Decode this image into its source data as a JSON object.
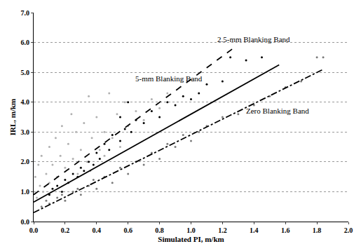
{
  "chart_data": {
    "type": "scatter",
    "x_label": "Simulated PI, m/km",
    "y_label": "IRL, m/km",
    "xlim": [
      0,
      2
    ],
    "ylim": [
      0,
      7
    ],
    "xticks": [
      {
        "value": 0,
        "label": "0.0"
      },
      0.2,
      0.4,
      0.6,
      0.8,
      {
        "value": 1,
        "label": "1.0"
      },
      1.2,
      1.4,
      1.6,
      1.8,
      {
        "value": 2,
        "label": "2.0"
      }
    ],
    "yticks": [
      {
        "value": 0,
        "label": "0.0"
      },
      {
        "value": 1,
        "label": "1.0"
      },
      {
        "value": 2,
        "label": "2.0"
      },
      {
        "value": 3,
        "label": "3.0"
      },
      {
        "value": 4,
        "label": "4.0"
      },
      {
        "value": 5,
        "label": "5.0"
      },
      {
        "value": 6,
        "label": "6.0"
      },
      {
        "value": 7,
        "label": "7.0"
      }
    ],
    "grid": "y",
    "series": [
      {
        "type": "scatter",
        "color": "#b0b0b0",
        "marker": "dot",
        "x": [
          0.0,
          0.01,
          0.02,
          0.03,
          0.04,
          0.05,
          0.06,
          0.08,
          0.1,
          0.1,
          0.12,
          0.14,
          0.15,
          0.17,
          0.18,
          0.2,
          0.22,
          0.24,
          0.25,
          0.27,
          0.28,
          0.3,
          0.32,
          0.34,
          0.35,
          0.37,
          0.4,
          0.42,
          0.45,
          0.48,
          0.5,
          0.53,
          0.55,
          0.58,
          0.6,
          0.65,
          0.7,
          0.75,
          0.8,
          0.85,
          0.45,
          0.36
        ],
        "values": [
          1.0,
          1.5,
          0.8,
          1.9,
          1.2,
          2.2,
          1.0,
          1.6,
          2.5,
          1.3,
          1.9,
          2.8,
          1.5,
          2.2,
          3.2,
          1.8,
          2.6,
          3.6,
          2.1,
          3.0,
          1.6,
          2.4,
          3.3,
          2.0,
          4.2,
          2.8,
          3.5,
          2.4,
          3.0,
          4.3,
          2.8,
          3.6,
          2.5,
          4.0,
          3.2,
          3.7,
          3.4,
          4.1,
          3.8,
          4.3,
          2.2,
          1.7
        ]
      },
      {
        "type": "scatter",
        "color": "#7a7a7a",
        "marker": "dot",
        "x": [
          0.05,
          0.08,
          0.1,
          0.15,
          0.18,
          0.2,
          0.25,
          0.28,
          0.3,
          0.35,
          0.38,
          0.4,
          0.45,
          0.5,
          0.55,
          0.6,
          0.65,
          0.7,
          0.75,
          0.8,
          0.85,
          0.9,
          0.95,
          1.0,
          1.05,
          1.1,
          1.2,
          1.3,
          1.4,
          1.5,
          1.6,
          1.7,
          1.8,
          1.84
        ],
        "values": [
          0.5,
          0.7,
          0.6,
          0.8,
          0.9,
          0.7,
          1.0,
          1.1,
          0.9,
          1.2,
          1.4,
          1.1,
          1.5,
          1.3,
          1.8,
          1.6,
          2.0,
          1.9,
          2.3,
          2.1,
          2.6,
          2.5,
          2.9,
          2.7,
          3.0,
          3.2,
          3.5,
          3.6,
          3.9,
          4.2,
          4.5,
          4.7,
          5.5,
          5.5
        ]
      },
      {
        "type": "scatter",
        "color": "#000000",
        "marker": "dot",
        "x": [
          0.1,
          0.12,
          0.15,
          0.18,
          0.2,
          0.22,
          0.25,
          0.28,
          0.3,
          0.32,
          0.35,
          0.38,
          0.4,
          0.42,
          0.45,
          0.48,
          0.5,
          0.55,
          0.58,
          0.62,
          0.65,
          0.7,
          0.75,
          0.8,
          0.85,
          0.9,
          0.95,
          1.0,
          1.05,
          1.1,
          1.2,
          1.25,
          1.35,
          1.45,
          0.6,
          0.55
        ],
        "values": [
          0.9,
          1.1,
          1.2,
          1.0,
          1.4,
          1.3,
          1.6,
          1.5,
          1.8,
          1.7,
          2.0,
          1.9,
          2.3,
          2.1,
          2.6,
          2.4,
          2.9,
          2.7,
          3.1,
          3.0,
          3.4,
          3.3,
          3.7,
          3.5,
          4.0,
          3.9,
          4.2,
          4.1,
          4.3,
          4.6,
          4.7,
          5.5,
          5.4,
          5.5,
          4.0,
          3.5
        ]
      },
      {
        "type": "line",
        "name": "5-mm Blanking Band",
        "color": "#000000",
        "line_style": "dash",
        "x": [
          0,
          1.28
        ],
        "values": [
          0.9,
          5.85
        ]
      },
      {
        "type": "line",
        "name": "2.5-mm Blanking Band",
        "color": "#000000",
        "line_style": "solid",
        "x": [
          0,
          1.56
        ],
        "values": [
          0.65,
          5.25
        ]
      },
      {
        "type": "line",
        "name": "Zero Blanking Band",
        "color": "#000000",
        "line_style": "dashdot",
        "x": [
          0,
          1.84
        ],
        "values": [
          0.3,
          5.1
        ]
      }
    ]
  }
}
